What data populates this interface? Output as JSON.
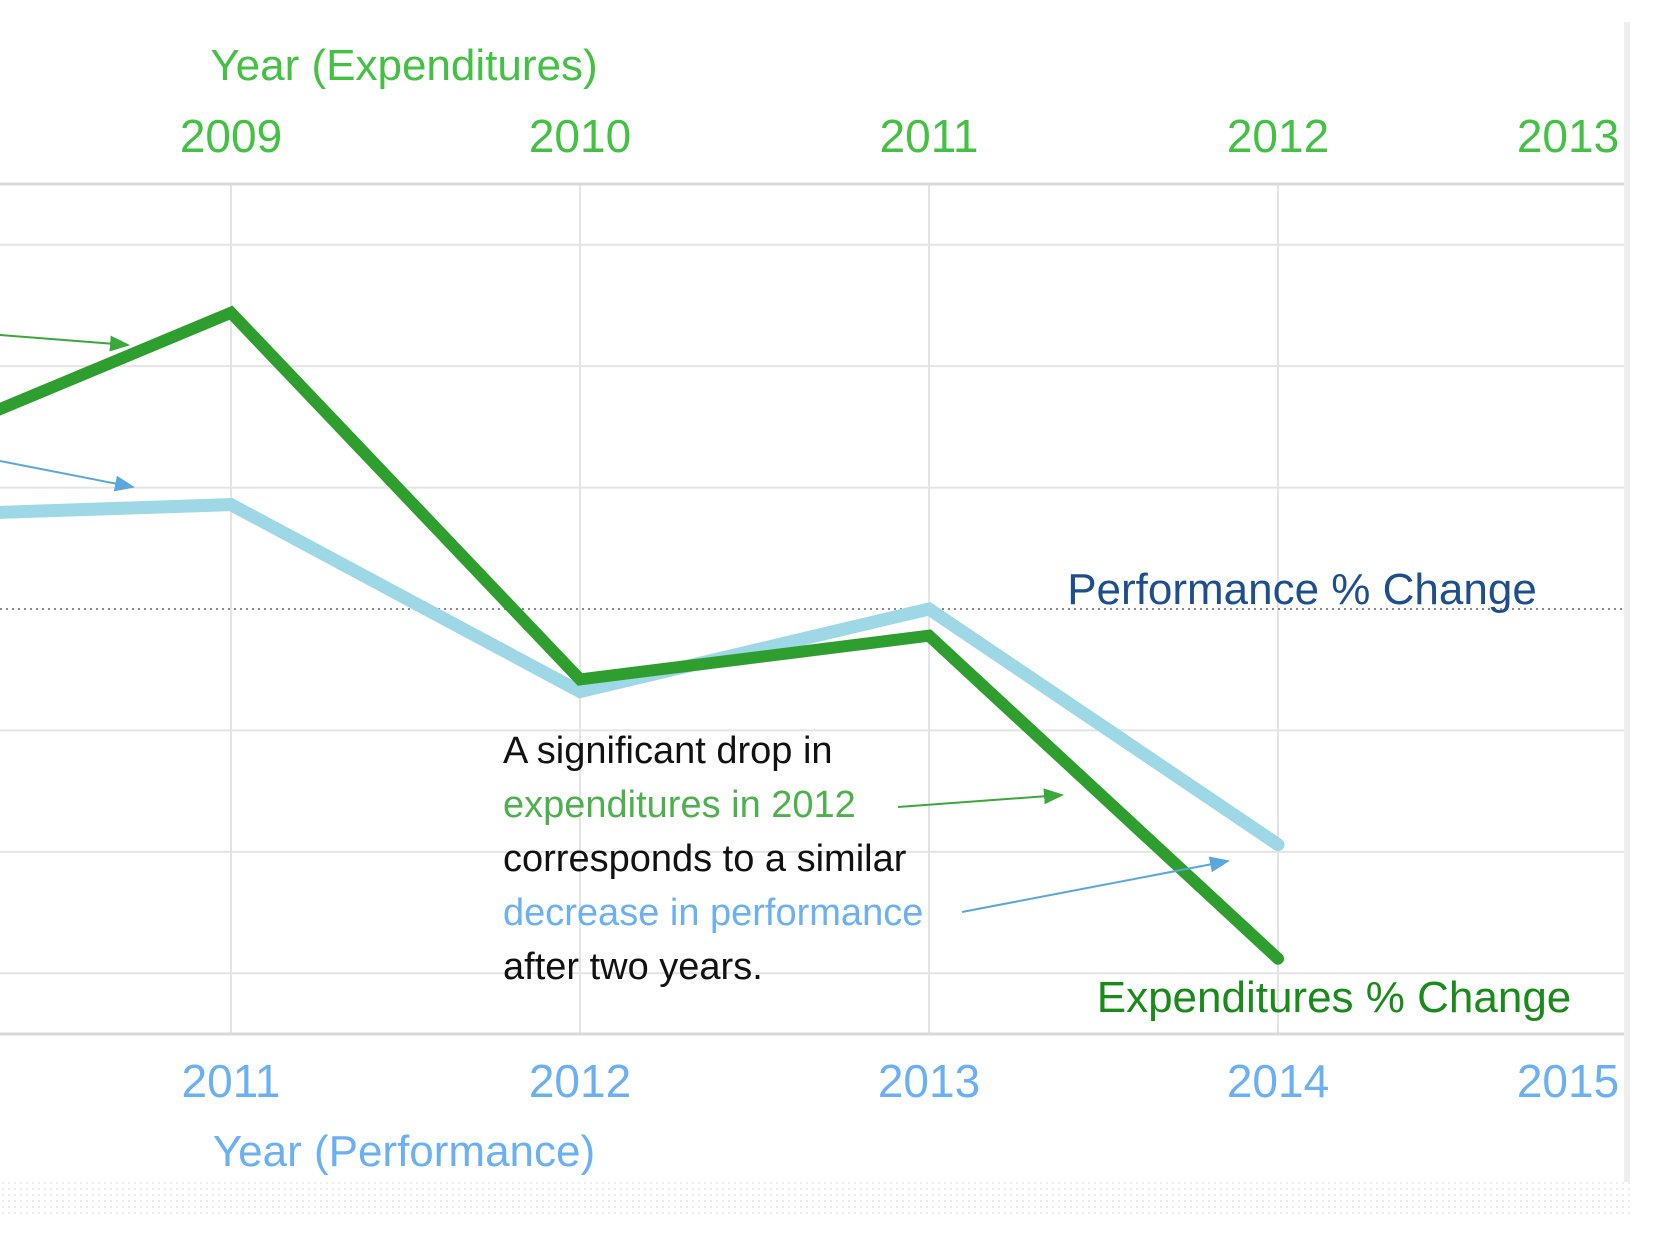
{
  "colors": {
    "expenditures": "#2e9e2e",
    "performance": "#9ed8e6",
    "top_axis_text": "#44c044",
    "bottom_axis_text": "#6ab0f2",
    "perf_label": "#1f4e8c",
    "exp_label": "#1a8a1a",
    "grid": "#e4e4e4",
    "axis_line": "#d9d9d9",
    "baseline": "#8a8a8a",
    "annotation_text": "#111111",
    "annotation_green": "#4db04d",
    "annotation_blue": "#6ab0f2"
  },
  "chart_data": {
    "type": "line",
    "x_top": {
      "title": "Year (Expenditures)",
      "ticks": [
        "2009",
        "2010",
        "2011",
        "2012",
        "2013"
      ]
    },
    "x_bottom": {
      "title": "Year (Performance)",
      "ticks": [
        "2011",
        "2012",
        "2013",
        "2014",
        "2015"
      ]
    },
    "categories": [
      "2011",
      "2012",
      "2013",
      "2014"
    ],
    "ylim": [
      -1.75,
      1.75
    ],
    "baseline": 0,
    "series": [
      {
        "name": "Expenditures % Change",
        "key": "expenditures",
        "x_offset": -1.45,
        "y_offset": 0.35,
        "values": [
          1.22,
          -0.29,
          -0.11,
          -1.44
        ]
      },
      {
        "name": "Performance % Change",
        "key": "performance",
        "x_offset": -1.45,
        "y_offset": 0.36,
        "values": [
          0.43,
          -0.34,
          0.0,
          -0.97
        ]
      }
    ],
    "annotation": {
      "lines": [
        {
          "text": "A significant drop in",
          "color": "annotation_text"
        },
        {
          "text": "expenditures in 2012",
          "color": "annotation_green"
        },
        {
          "text": "corresponds to a similar",
          "color": "annotation_text"
        },
        {
          "text": "decrease in performance",
          "color": "annotation_blue"
        },
        {
          "text": "after two years.",
          "color": "annotation_text"
        }
      ]
    }
  }
}
